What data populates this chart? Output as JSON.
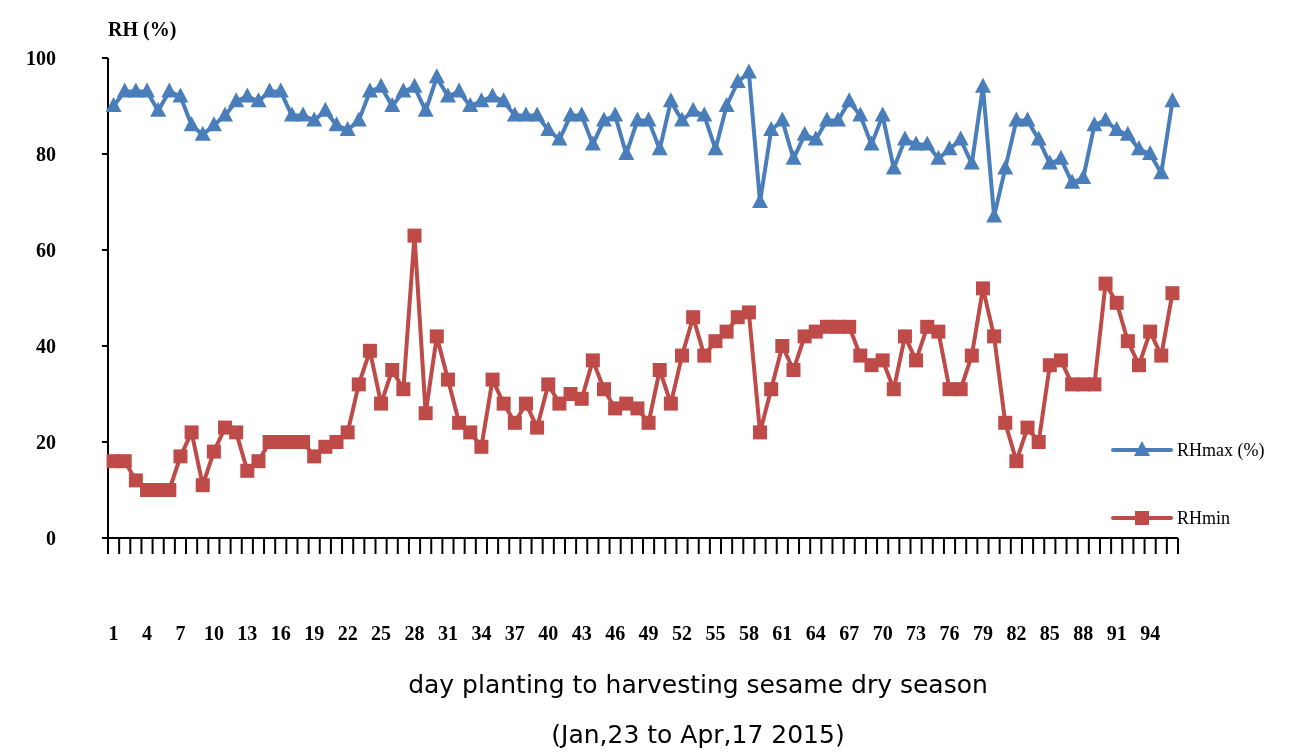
{
  "chart_data": {
    "type": "line",
    "ylabel": "RH (%)",
    "xlabel": "day planting to harvesting sesame dry season",
    "annotations": [
      "(Jan,23 to Apr,17 2015)"
    ],
    "categories": [
      "1",
      null,
      null,
      "4",
      null,
      null,
      "7",
      null,
      null,
      "10",
      null,
      null,
      "13",
      null,
      null,
      "16",
      null,
      null,
      "19",
      null,
      null,
      "22",
      null,
      null,
      "25",
      null,
      null,
      "28",
      null,
      null,
      "31",
      null,
      null,
      "34",
      null,
      null,
      "37",
      null,
      null,
      "40",
      null,
      null,
      "43",
      null,
      null,
      "46",
      null,
      null,
      "49",
      null,
      null,
      "52",
      null,
      null,
      "55",
      null,
      null,
      "58",
      null,
      null,
      "61",
      null,
      null,
      "64",
      null,
      null,
      "67",
      null,
      null,
      "70",
      null,
      null,
      "73",
      null,
      null,
      "76",
      null,
      null,
      "79",
      null,
      null,
      "82",
      null,
      null,
      "85",
      null,
      null,
      "88",
      null,
      null,
      "91",
      null,
      null,
      "94",
      null,
      null
    ],
    "series": [
      {
        "name": "RHmax (%)",
        "color": "#4a7ebb",
        "marker": "triangle",
        "values": [
          90,
          93,
          93,
          93,
          89,
          93,
          92,
          86,
          84,
          86,
          88,
          91,
          92,
          91,
          93,
          93,
          88,
          88,
          87,
          89,
          86,
          85,
          87,
          93,
          94,
          90,
          93,
          94,
          89,
          96,
          92,
          93,
          90,
          91,
          92,
          91,
          88,
          88,
          88,
          85,
          83,
          88,
          88,
          82,
          87,
          88,
          80,
          87,
          87,
          81,
          91,
          87,
          89,
          88,
          81,
          90,
          95,
          97,
          70,
          85,
          87,
          79,
          84,
          83,
          87,
          87,
          91,
          88,
          82,
          88,
          77,
          83,
          82,
          82,
          79,
          81,
          83,
          78,
          94,
          67,
          77,
          87,
          87,
          83,
          78,
          79,
          74,
          75,
          86,
          87,
          85,
          84,
          81,
          80,
          76,
          91
        ]
      },
      {
        "name": "RHmin",
        "color": "#be4b48",
        "marker": "square",
        "values": [
          16,
          16,
          12,
          10,
          10,
          10,
          17,
          22,
          11,
          18,
          23,
          22,
          14,
          16,
          20,
          20,
          20,
          20,
          17,
          19,
          20,
          22,
          32,
          39,
          28,
          35,
          31,
          63,
          26,
          42,
          33,
          24,
          22,
          19,
          33,
          28,
          24,
          28,
          23,
          32,
          28,
          30,
          29,
          37,
          31,
          27,
          28,
          27,
          24,
          35,
          28,
          38,
          46,
          38,
          41,
          43,
          46,
          47,
          22,
          31,
          40,
          35,
          42,
          43,
          44,
          44,
          44,
          38,
          36,
          37,
          31,
          42,
          37,
          44,
          43,
          31,
          31,
          38,
          52,
          42,
          24,
          16,
          23,
          20,
          36,
          37,
          32,
          32,
          32,
          53,
          49,
          41,
          36,
          43,
          38,
          51
        ]
      }
    ],
    "ylim": [
      0,
      100
    ],
    "yticks": [
      0,
      20,
      40,
      60,
      80,
      100
    ],
    "grid": false,
    "legend": "right",
    "line_style": "solid"
  }
}
